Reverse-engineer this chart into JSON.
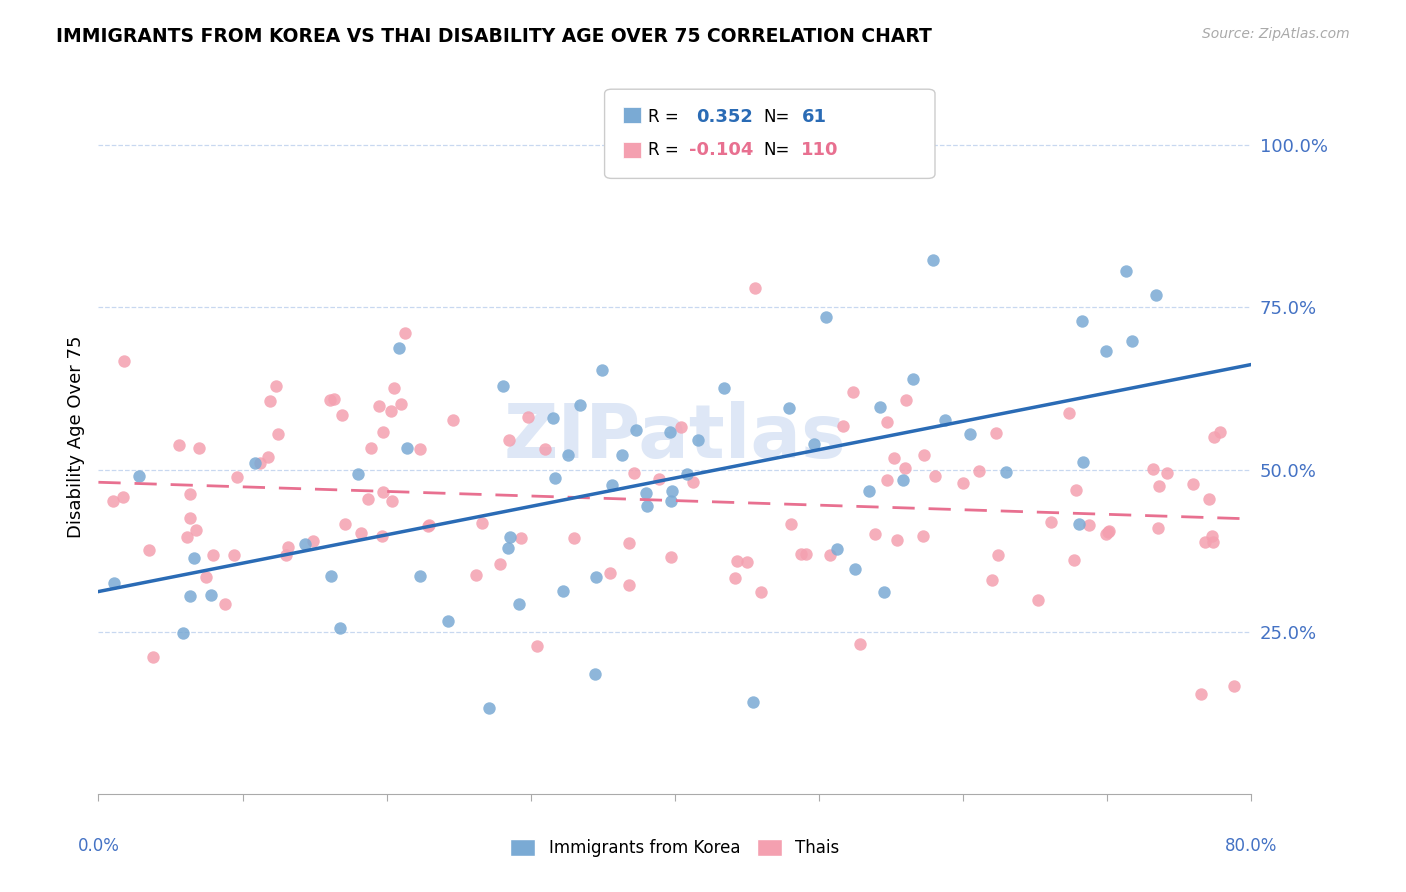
{
  "title": "IMMIGRANTS FROM KOREA VS THAI DISABILITY AGE OVER 75 CORRELATION CHART",
  "source": "Source: ZipAtlas.com",
  "ylabel": "Disability Age Over 75",
  "korea_R": 0.352,
  "korea_N": 61,
  "thai_R": -0.104,
  "thai_N": 110,
  "korea_color": "#7aaad4",
  "thai_color": "#f4a0b0",
  "korea_line_color": "#2a6bb5",
  "thai_line_color": "#e87090",
  "watermark": "ZIPatlas",
  "xlim": [
    0.0,
    0.8
  ],
  "ylim": [
    0.0,
    1.1
  ],
  "ytick_values": [
    0.25,
    0.5,
    0.75,
    1.0
  ],
  "ytick_labels": [
    "25.0%",
    "50.0%",
    "75.0%",
    "100.0%"
  ],
  "grid_color": "#c8d8f0",
  "axis_label_color": "#4472c4"
}
